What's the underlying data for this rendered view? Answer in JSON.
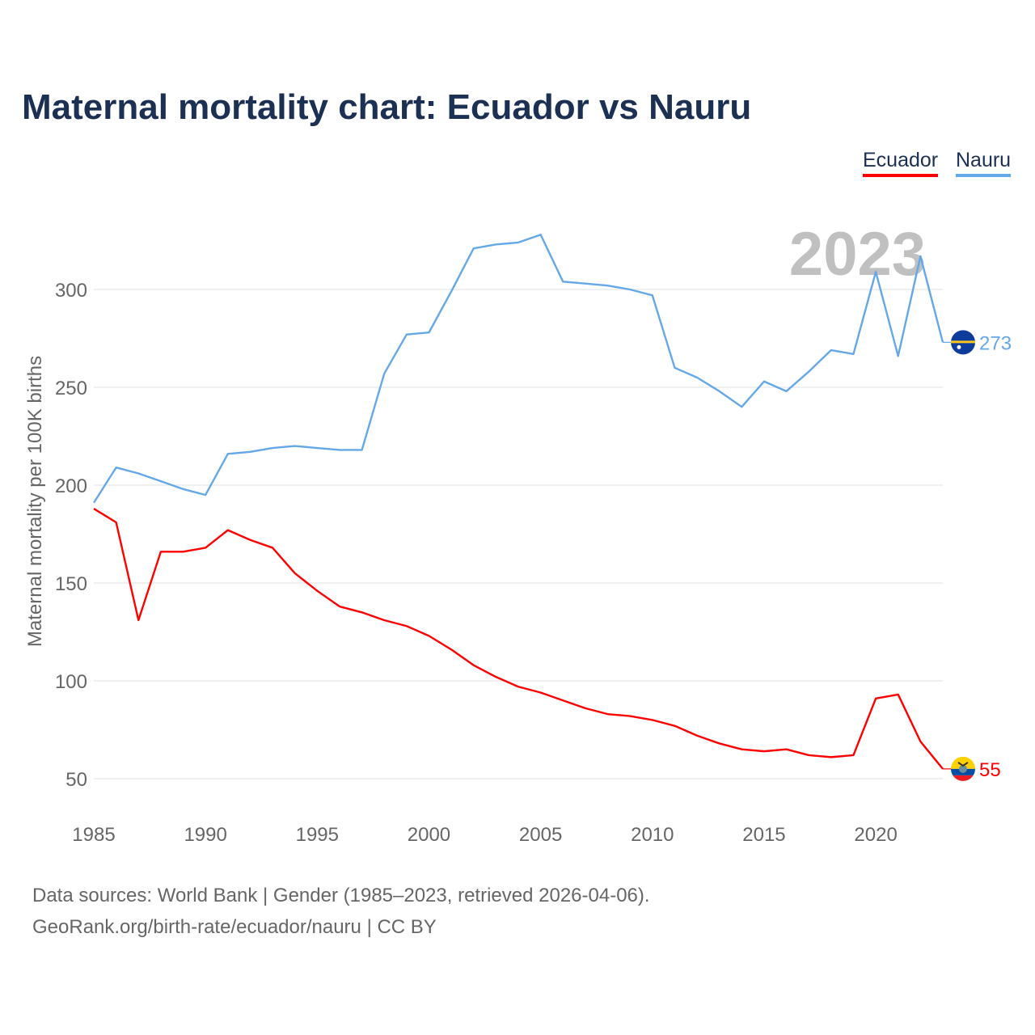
{
  "chart_data": {
    "type": "line",
    "title": "Maternal mortality chart: Ecuador vs Nauru",
    "ylabel": "Maternal mortality per 100K births",
    "xlabel": "",
    "xlim": [
      1985,
      2023
    ],
    "ylim": [
      30,
      335
    ],
    "x_ticks": [
      1985,
      1990,
      1995,
      2000,
      2005,
      2010,
      2015,
      2020
    ],
    "y_ticks": [
      50,
      100,
      150,
      200,
      250,
      300
    ],
    "grid": true,
    "legend_position": "top-right",
    "year_label": "2023",
    "x": [
      1985,
      1986,
      1987,
      1988,
      1989,
      1990,
      1991,
      1992,
      1993,
      1994,
      1995,
      1996,
      1997,
      1998,
      1999,
      2000,
      2001,
      2002,
      2003,
      2004,
      2005,
      2006,
      2007,
      2008,
      2009,
      2010,
      2011,
      2012,
      2013,
      2014,
      2015,
      2016,
      2017,
      2018,
      2019,
      2020,
      2021,
      2022,
      2023
    ],
    "series": [
      {
        "name": "Ecuador",
        "color": "#ff0000",
        "end_label": "55",
        "values": [
          188,
          181,
          131,
          166,
          166,
          168,
          177,
          172,
          168,
          155,
          146,
          138,
          135,
          131,
          128,
          123,
          116,
          108,
          102,
          97,
          94,
          90,
          86,
          83,
          82,
          80,
          77,
          72,
          68,
          65,
          64,
          65,
          62,
          61,
          62,
          91,
          93,
          69,
          55
        ]
      },
      {
        "name": "Nauru",
        "color": "#64a8e8",
        "end_label": "273",
        "values": [
          191,
          209,
          206,
          202,
          198,
          195,
          216,
          217,
          219,
          220,
          219,
          218,
          218,
          257,
          277,
          278,
          299,
          321,
          323,
          324,
          328,
          304,
          303,
          302,
          300,
          297,
          260,
          255,
          248,
          240,
          253,
          248,
          258,
          269,
          267,
          309,
          266,
          317,
          273
        ]
      }
    ]
  },
  "footer": {
    "line1": "Data sources: World Bank | Gender (1985–2023, retrieved 2026-04-06).",
    "line2": "GeoRank.org/birth-rate/ecuador/nauru | CC BY"
  }
}
